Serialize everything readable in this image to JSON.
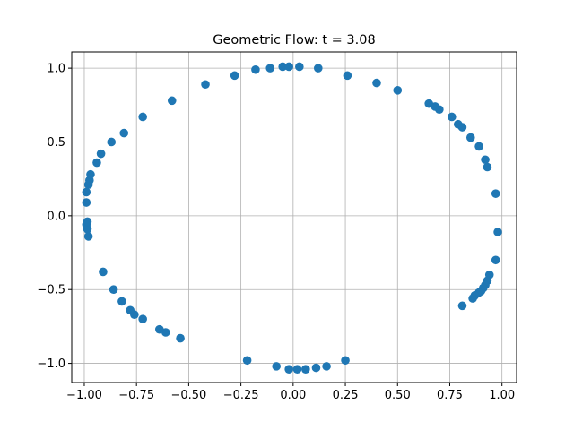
{
  "chart_data": {
    "type": "scatter",
    "title": "Geometric Flow: t = 3.08",
    "xlabel": "",
    "ylabel": "",
    "xlim": [
      -1.06,
      1.07
    ],
    "ylim": [
      -1.13,
      1.11
    ],
    "xticks": [
      -1.0,
      -0.75,
      -0.5,
      -0.25,
      0.0,
      0.25,
      0.5,
      0.75,
      1.0
    ],
    "xtick_labels": [
      "−1.00",
      "−0.75",
      "−0.50",
      "−0.25",
      "0.00",
      "0.25",
      "0.50",
      "0.75",
      "1.00"
    ],
    "yticks": [
      -1.0,
      -0.5,
      0.0,
      0.5,
      1.0
    ],
    "ytick_labels": [
      "−1.0",
      "−0.5",
      "0.0",
      "0.5",
      "1.0"
    ],
    "grid": true,
    "marker_color": "#1f77b4",
    "points": [
      [
        -0.99,
        0.09
      ],
      [
        -0.99,
        0.16
      ],
      [
        -0.98,
        0.21
      ],
      [
        -0.975,
        0.24
      ],
      [
        -0.97,
        0.28
      ],
      [
        -0.94,
        0.36
      ],
      [
        -0.92,
        0.42
      ],
      [
        -0.87,
        0.5
      ],
      [
        -0.81,
        0.56
      ],
      [
        -0.72,
        0.67
      ],
      [
        -0.58,
        0.78
      ],
      [
        -0.42,
        0.89
      ],
      [
        -0.28,
        0.95
      ],
      [
        -0.18,
        0.99
      ],
      [
        -0.11,
        1.0
      ],
      [
        -0.05,
        1.01
      ],
      [
        -0.02,
        1.01
      ],
      [
        0.03,
        1.01
      ],
      [
        0.12,
        1.0
      ],
      [
        0.26,
        0.95
      ],
      [
        0.4,
        0.9
      ],
      [
        0.5,
        0.85
      ],
      [
        0.65,
        0.76
      ],
      [
        0.68,
        0.74
      ],
      [
        0.7,
        0.72
      ],
      [
        0.76,
        0.67
      ],
      [
        0.79,
        0.62
      ],
      [
        0.81,
        0.6
      ],
      [
        0.85,
        0.53
      ],
      [
        0.89,
        0.47
      ],
      [
        0.92,
        0.38
      ],
      [
        0.93,
        0.33
      ],
      [
        0.97,
        0.15
      ],
      [
        0.98,
        -0.11
      ],
      [
        0.97,
        -0.3
      ],
      [
        0.94,
        -0.4
      ],
      [
        0.93,
        -0.44
      ],
      [
        0.92,
        -0.47
      ],
      [
        0.91,
        -0.49
      ],
      [
        0.9,
        -0.51
      ],
      [
        0.89,
        -0.52
      ],
      [
        0.87,
        -0.54
      ],
      [
        0.86,
        -0.56
      ],
      [
        0.81,
        -0.61
      ],
      [
        0.25,
        -0.98
      ],
      [
        0.16,
        -1.02
      ],
      [
        0.11,
        -1.03
      ],
      [
        0.06,
        -1.04
      ],
      [
        0.02,
        -1.04
      ],
      [
        -0.02,
        -1.04
      ],
      [
        -0.08,
        -1.02
      ],
      [
        -0.22,
        -0.98
      ],
      [
        -0.54,
        -0.83
      ],
      [
        -0.61,
        -0.79
      ],
      [
        -0.64,
        -0.77
      ],
      [
        -0.72,
        -0.7
      ],
      [
        -0.76,
        -0.67
      ],
      [
        -0.78,
        -0.64
      ],
      [
        -0.82,
        -0.58
      ],
      [
        -0.86,
        -0.5
      ],
      [
        -0.91,
        -0.38
      ],
      [
        -0.98,
        -0.14
      ],
      [
        -0.985,
        -0.09
      ],
      [
        -0.99,
        -0.06
      ],
      [
        -0.985,
        -0.04
      ]
    ]
  }
}
